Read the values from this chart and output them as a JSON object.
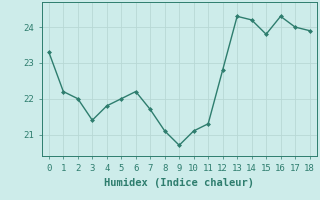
{
  "x": [
    0,
    1,
    2,
    3,
    4,
    5,
    6,
    7,
    8,
    9,
    10,
    11,
    12,
    13,
    14,
    15,
    16,
    17,
    18
  ],
  "y": [
    23.3,
    22.2,
    22.0,
    21.4,
    21.8,
    22.0,
    22.2,
    21.7,
    21.1,
    20.7,
    21.1,
    21.3,
    22.8,
    24.3,
    24.2,
    23.8,
    24.3,
    24.0,
    23.9
  ],
  "line_color": "#2e7d6e",
  "marker": "D",
  "marker_size": 2.0,
  "linewidth": 1.0,
  "xlabel": "Humidex (Indice chaleur)",
  "xlim": [
    -0.5,
    18.5
  ],
  "ylim": [
    20.4,
    24.7
  ],
  "yticks": [
    21,
    22,
    23,
    24
  ],
  "xticks": [
    0,
    1,
    2,
    3,
    4,
    5,
    6,
    7,
    8,
    9,
    10,
    11,
    12,
    13,
    14,
    15,
    16,
    17,
    18
  ],
  "bg_color": "#cdecea",
  "grid_color": "#b8d8d5",
  "xlabel_fontsize": 7.5,
  "tick_fontsize": 6.5
}
